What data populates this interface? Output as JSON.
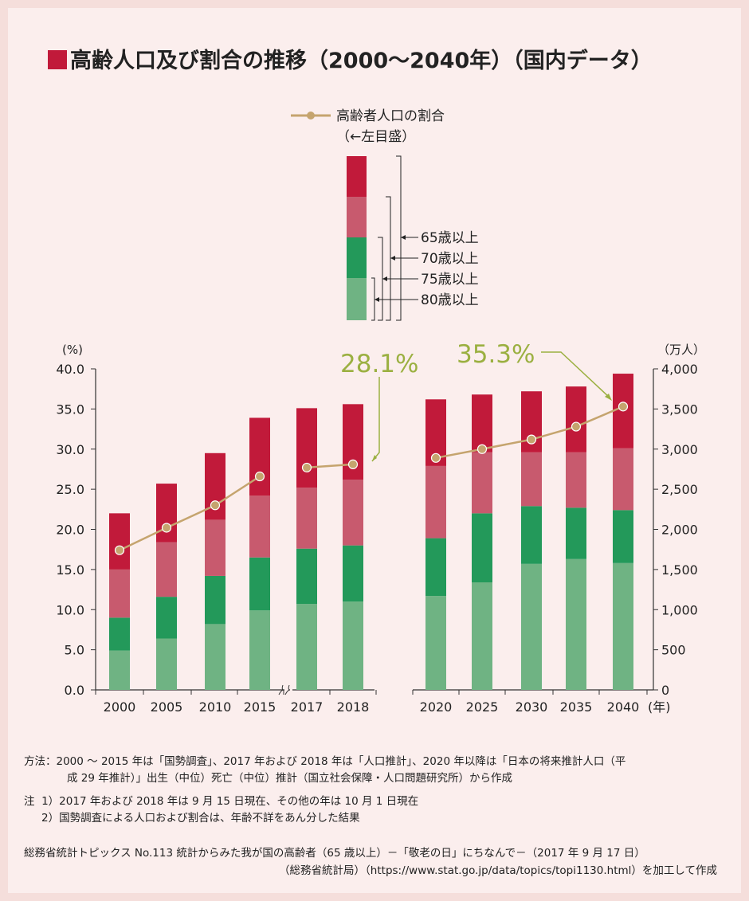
{
  "title": "高齢人口及び割合の推移（2000～2040年）（国内データ）",
  "legend": {
    "line_label_1": "高齢者人口の割合",
    "line_label_2": "（←左目盛）",
    "age_65": "65歳以上",
    "age_70": "70歳以上",
    "age_75": "75歳以上",
    "age_80": "80歳以上"
  },
  "axes": {
    "left_unit": "(%)",
    "right_unit": "（万人）",
    "year_unit": "(年)",
    "left_ticks": [
      "0.0",
      "5.0",
      "10.0",
      "15.0",
      "20.0",
      "25.0",
      "30.0",
      "35.0",
      "40.0"
    ],
    "right_ticks": [
      "0",
      "500",
      "1,000",
      "1,500",
      "2,000",
      "2,500",
      "3,000",
      "3,500",
      "4,000"
    ]
  },
  "annotations": {
    "a2018": "28.1%",
    "a2040": "35.3%"
  },
  "colors": {
    "age_80_plus": "#6fb383",
    "age_75_79": "#23995a",
    "age_70_74": "#c85a6e",
    "age_65_69": "#c11a3a",
    "line": "#c5a46e",
    "annotation": "#9bb041",
    "axis": "#333333"
  },
  "chart_data": {
    "type": "bar",
    "stacked": true,
    "categories": [
      "2000",
      "2005",
      "2010",
      "2015",
      "2017",
      "2018",
      "2020",
      "2025",
      "2030",
      "2035",
      "2040"
    ],
    "series": [
      {
        "name": "80歳以上",
        "values": [
          4.9,
          6.4,
          8.2,
          9.9,
          10.7,
          11.0,
          11.7,
          13.4,
          15.7,
          16.3,
          15.8
        ]
      },
      {
        "name": "75歳以上",
        "values": [
          9.0,
          11.6,
          14.2,
          16.5,
          17.6,
          18.0,
          18.9,
          22.0,
          22.9,
          22.7,
          22.4
        ]
      },
      {
        "name": "70歳以上",
        "values": [
          15.0,
          18.4,
          21.2,
          24.2,
          25.2,
          26.2,
          27.9,
          29.6,
          29.6,
          29.6,
          30.1
        ]
      },
      {
        "name": "65歳以上",
        "values": [
          22.0,
          25.7,
          29.5,
          33.9,
          35.1,
          35.6,
          36.2,
          36.8,
          37.2,
          37.8,
          39.4
        ]
      }
    ],
    "line_series": {
      "name": "高齢者人口の割合",
      "axis": "left",
      "values": [
        17.4,
        20.2,
        23.0,
        26.6,
        27.7,
        28.1,
        28.9,
        30.0,
        31.2,
        32.8,
        35.3
      ]
    },
    "bar_axis": "right",
    "left_ylim": [
      0,
      40
    ],
    "right_ylim": [
      0,
      4000
    ],
    "grid": false
  },
  "notes": {
    "method_label": "方法：",
    "method_line1": "2000 ～ 2015 年は「国勢調査」、2017 年および 2018 年は「人口推計」、2020 年以降は「日本の将来推計人口（平",
    "method_line2": "成 29 年推計）」出生（中位）死亡（中位）推計（国立社会保障・人口問題研究所）から作成",
    "note_label": "注",
    "note1": "1）2017 年および 2018 年は 9 月 15 日現在、その他の年は 10 月 1 日現在",
    "note2": "2）国勢調査による人口および割合は、年齢不詳をあん分した結果",
    "source_line1": "総務省統計トピックス No.113 統計からみた我が国の高齢者（65 歳以上）－「敬老の日」にちなんで－（2017 年 9 月 17 日）",
    "source_line2": "（総務省統計局）（https://www.stat.go.jp/data/topics/topi1130.html）を加工して作成"
  }
}
